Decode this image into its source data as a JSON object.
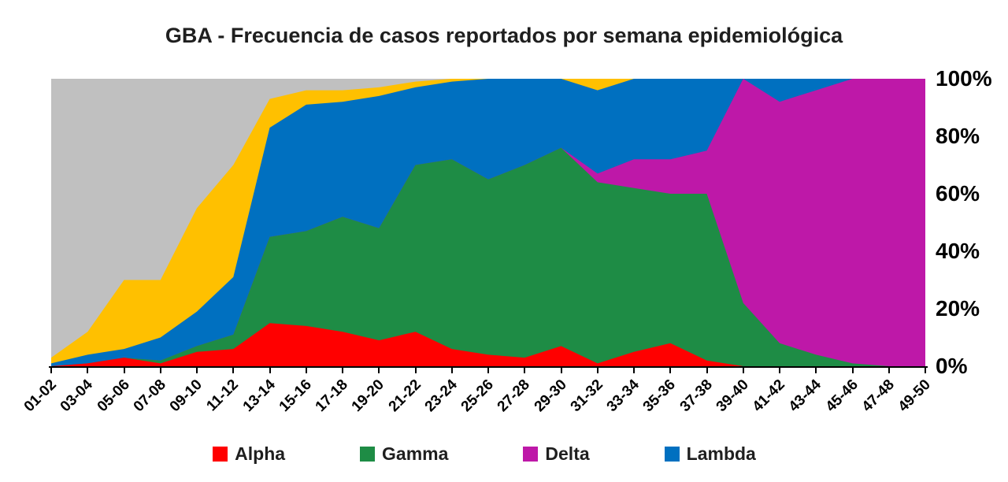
{
  "title": "GBA - Frecuencia de casos reportados por semana epidemiológica",
  "chart_data": {
    "type": "area",
    "stacked": true,
    "normalized_percent": true,
    "title": "GBA - Frecuencia de casos reportados por semana epidemiológica",
    "xlabel": "",
    "ylabel": "",
    "ylim": [
      0,
      100
    ],
    "grid": false,
    "legend_position": "bottom",
    "background_remainder_color": "#C0C0C0",
    "categories": [
      "01-02",
      "03-04",
      "05-06",
      "07-08",
      "09-10",
      "11-12",
      "13-14",
      "15-16",
      "17-18",
      "19-20",
      "21-22",
      "23-24",
      "25-26",
      "27-28",
      "29-30",
      "31-32",
      "33-34",
      "35-36",
      "37-38",
      "39-40",
      "41-42",
      "43-44",
      "45-46",
      "47-48",
      "49-50"
    ],
    "series": [
      {
        "id": "alpha",
        "legend_label": "Alpha",
        "color": "#FF0000",
        "values": [
          0,
          1,
          3,
          1,
          5,
          6,
          15,
          14,
          12,
          9,
          12,
          6,
          4,
          3,
          7,
          1,
          5,
          8,
          2,
          0,
          0,
          0,
          0,
          0,
          0
        ]
      },
      {
        "id": "gamma",
        "legend_label": "Gamma",
        "color": "#1E8C45",
        "values": [
          0,
          0,
          0,
          1,
          2,
          5,
          30,
          33,
          40,
          39,
          58,
          66,
          61,
          67,
          69,
          63,
          57,
          52,
          58,
          22,
          8,
          4,
          1,
          0,
          0
        ]
      },
      {
        "id": "delta",
        "legend_label": "Delta",
        "color": "#BE18A8",
        "values": [
          0,
          0,
          0,
          0,
          0,
          0,
          0,
          0,
          0,
          0,
          0,
          0,
          0,
          0,
          0,
          3,
          10,
          12,
          15,
          78,
          84,
          92,
          99,
          100,
          100
        ]
      },
      {
        "id": "lambda",
        "legend_label": "Lambda",
        "color": "#0070C0",
        "values": [
          1,
          3,
          3,
          8,
          12,
          20,
          38,
          44,
          40,
          46,
          27,
          27,
          35,
          30,
          24,
          29,
          28,
          28,
          25,
          0,
          8,
          4,
          0,
          0,
          0
        ]
      },
      {
        "id": "unlabeled-yellow",
        "legend_label": null,
        "color": "#FFC000",
        "values": [
          2,
          8,
          24,
          20,
          36,
          39,
          10,
          5,
          4,
          3,
          2,
          1,
          0,
          0,
          0,
          4,
          0,
          0,
          0,
          0,
          0,
          0,
          0,
          0,
          0
        ]
      }
    ],
    "yticks": [
      {
        "label": "100%",
        "value": 100
      },
      {
        "label": "80%",
        "value": 80
      },
      {
        "label": "60%",
        "value": 60
      },
      {
        "label": "40%",
        "value": 40
      },
      {
        "label": "20%",
        "value": 20
      },
      {
        "label": "0%",
        "value": 0
      }
    ]
  }
}
